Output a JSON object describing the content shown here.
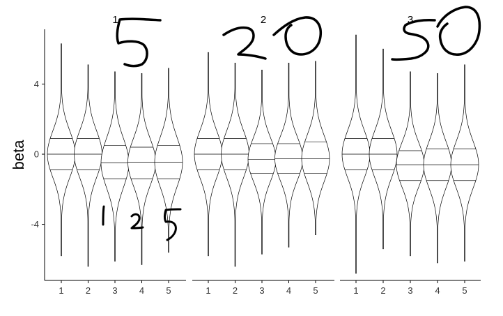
{
  "chart_data": {
    "type": "violin",
    "ylabel": "beta",
    "ylim": [
      -7.2,
      7.6
    ],
    "y_ticks": [
      -4,
      0,
      4
    ],
    "y_tick_labels": [
      "-4",
      "0",
      "4"
    ],
    "categories": [
      "1",
      "2",
      "3",
      "4",
      "5"
    ],
    "facets": [
      {
        "label": "1",
        "annotation": "5",
        "violins": [
          {
            "x": "1",
            "min": -5.8,
            "max": 6.3,
            "q25": -0.9,
            "median": 0.0,
            "q75": 0.9
          },
          {
            "x": "2",
            "min": -6.4,
            "max": 5.1,
            "q25": -0.9,
            "median": 0.0,
            "q75": 0.9
          },
          {
            "x": "3",
            "min": -6.1,
            "max": 4.7,
            "q25": -1.4,
            "median": -0.5,
            "q75": 0.5
          },
          {
            "x": "4",
            "min": -6.3,
            "max": 4.6,
            "q25": -1.4,
            "median": -0.45,
            "q75": 0.4
          },
          {
            "x": "5",
            "min": -5.6,
            "max": 4.9,
            "q25": -1.4,
            "median": -0.45,
            "q75": 0.5
          }
        ]
      },
      {
        "label": "2",
        "annotation": "20",
        "violins": [
          {
            "x": "1",
            "min": -5.8,
            "max": 5.8,
            "q25": -0.9,
            "median": 0.0,
            "q75": 0.9
          },
          {
            "x": "2",
            "min": -6.4,
            "max": 5.2,
            "q25": -0.9,
            "median": 0.0,
            "q75": 0.9
          },
          {
            "x": "3",
            "min": -5.7,
            "max": 4.8,
            "q25": -1.1,
            "median": -0.3,
            "q75": 0.6
          },
          {
            "x": "4",
            "min": -5.3,
            "max": 5.2,
            "q25": -1.1,
            "median": -0.25,
            "q75": 0.6
          },
          {
            "x": "5",
            "min": -4.6,
            "max": 5.3,
            "q25": -1.1,
            "median": -0.25,
            "q75": 0.7
          }
        ]
      },
      {
        "label": "3",
        "annotation": "50",
        "violins": [
          {
            "x": "1",
            "min": -6.8,
            "max": 6.8,
            "q25": -0.9,
            "median": 0.0,
            "q75": 0.9
          },
          {
            "x": "2",
            "min": -5.4,
            "max": 6.0,
            "q25": -0.9,
            "median": 0.0,
            "q75": 0.9
          },
          {
            "x": "3",
            "min": -5.8,
            "max": 4.7,
            "q25": -1.5,
            "median": -0.6,
            "q75": 0.2
          },
          {
            "x": "4",
            "min": -6.2,
            "max": 4.6,
            "q25": -1.5,
            "median": -0.6,
            "q75": 0.3
          },
          {
            "x": "5",
            "min": -6.1,
            "max": 5.1,
            "q25": -1.5,
            "median": -0.6,
            "q75": 0.3
          }
        ]
      }
    ],
    "annotations": [
      "1",
      "2",
      "5"
    ]
  }
}
